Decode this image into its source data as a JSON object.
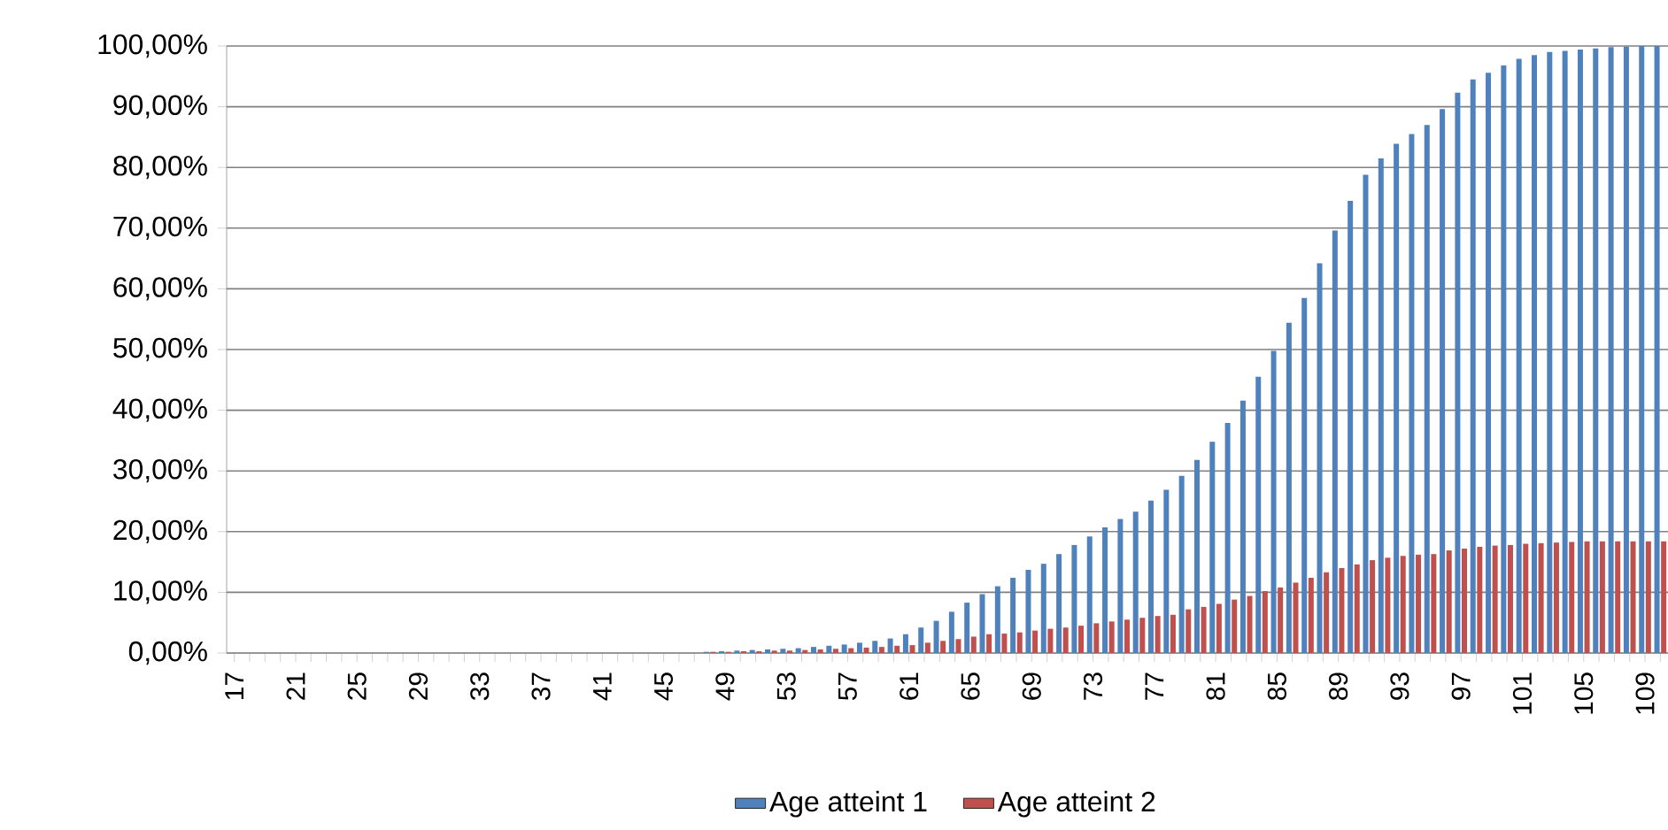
{
  "chart_data": {
    "type": "bar",
    "categories": [
      "17",
      null,
      null,
      null,
      "21",
      null,
      null,
      null,
      "25",
      null,
      null,
      null,
      "29",
      null,
      null,
      null,
      "33",
      null,
      null,
      null,
      "37",
      null,
      null,
      null,
      "41",
      null,
      null,
      null,
      "45",
      null,
      null,
      null,
      "49",
      null,
      null,
      null,
      "53",
      null,
      null,
      null,
      "57",
      null,
      null,
      null,
      "61",
      null,
      null,
      null,
      "65",
      null,
      null,
      null,
      "69",
      null,
      null,
      null,
      "73",
      null,
      null,
      null,
      "77",
      null,
      null,
      null,
      "81",
      null,
      null,
      null,
      "85",
      null,
      null,
      null,
      "89",
      null,
      null,
      null,
      "93",
      null,
      null,
      null,
      "97",
      null,
      null,
      null,
      "101",
      null,
      null,
      null,
      "105",
      null,
      null,
      null,
      "109",
      null
    ],
    "series": [
      {
        "name": "Age atteint 1",
        "color": "#4f81bd",
        "values": [
          0,
          0,
          0,
          0,
          0,
          0,
          0,
          0,
          0,
          0,
          0,
          0,
          0,
          0,
          0,
          0,
          0,
          0,
          0,
          0,
          0,
          0,
          0,
          0,
          0,
          0,
          0,
          0,
          0,
          0,
          0,
          0.2,
          0.3,
          0.4,
          0.5,
          0.6,
          0.7,
          0.8,
          1.0,
          1.2,
          1.4,
          1.7,
          2.0,
          2.4,
          3.1,
          4.2,
          5.3,
          6.8,
          8.3,
          9.7,
          11.0,
          12.4,
          13.7,
          14.7,
          16.3,
          17.8,
          19.2,
          20.7,
          22.1,
          23.3,
          25.1,
          26.9,
          29.2,
          31.8,
          34.8,
          37.9,
          41.6,
          45.5,
          49.8,
          54.4,
          58.5,
          64.2,
          69.6,
          74.5,
          78.8,
          81.5,
          83.9,
          85.5,
          87.0,
          89.6,
          92.3,
          94.5,
          95.6,
          96.8,
          97.9,
          98.5,
          99.0,
          99.2,
          99.4,
          99.6,
          99.8,
          99.9,
          100,
          100
        ]
      },
      {
        "name": "Age atteint 2",
        "color": "#c0504d",
        "values": [
          0,
          0,
          0,
          0,
          0,
          0,
          0,
          0,
          0,
          0,
          0,
          0,
          0,
          0,
          0,
          0,
          0,
          0,
          0,
          0,
          0,
          0,
          0,
          0,
          0,
          0,
          0,
          0,
          0,
          0,
          0,
          0.2,
          0.2,
          0.3,
          0.3,
          0.4,
          0.4,
          0.5,
          0.6,
          0.7,
          0.8,
          0.9,
          1.0,
          1.2,
          1.3,
          1.7,
          2.0,
          2.3,
          2.7,
          3.1,
          3.2,
          3.4,
          3.7,
          4.0,
          4.2,
          4.5,
          4.9,
          5.2,
          5.5,
          5.8,
          6.1,
          6.3,
          7.2,
          7.6,
          8.1,
          8.8,
          9.4,
          10.2,
          10.8,
          11.6,
          12.4,
          13.3,
          14.0,
          14.6,
          15.3,
          15.7,
          16.0,
          16.2,
          16.3,
          16.9,
          17.2,
          17.5,
          17.7,
          17.8,
          18.0,
          18.1,
          18.2,
          18.3,
          18.4,
          18.4,
          18.4,
          18.4,
          18.4,
          18.4
        ]
      }
    ],
    "ylim": [
      0,
      100
    ],
    "yticks": [
      {
        "value": 0,
        "label": "0,00%"
      },
      {
        "value": 10,
        "label": "10,00%"
      },
      {
        "value": 20,
        "label": "20,00%"
      },
      {
        "value": 30,
        "label": "30,00%"
      },
      {
        "value": 40,
        "label": "40,00%"
      },
      {
        "value": 50,
        "label": "50,00%"
      },
      {
        "value": 60,
        "label": "60,00%"
      },
      {
        "value": 70,
        "label": "70,00%"
      },
      {
        "value": 80,
        "label": "80,00%"
      },
      {
        "value": 90,
        "label": "90,00%"
      },
      {
        "value": 100,
        "label": "100,00%"
      }
    ],
    "grid": "y",
    "legend": "bottom"
  }
}
